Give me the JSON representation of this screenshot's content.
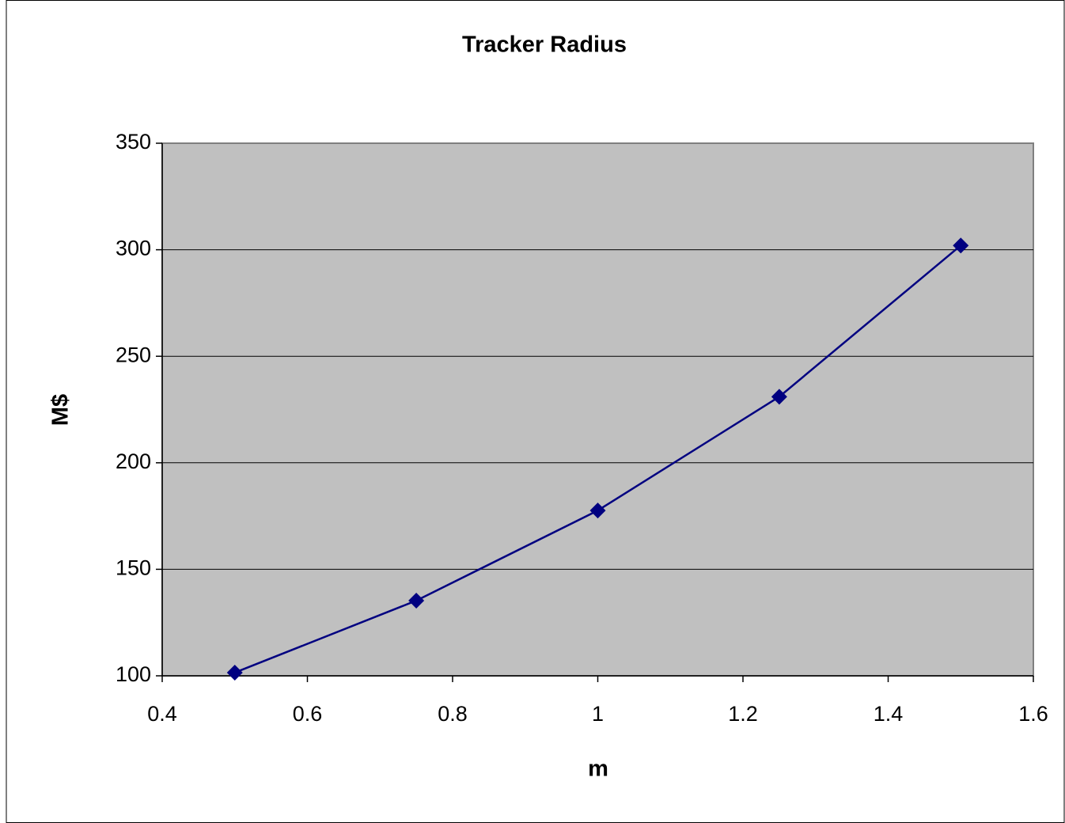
{
  "chart_data": {
    "type": "line",
    "title": "Tracker Radius",
    "x_label": "m",
    "y_label": "M$",
    "x": [
      0.5,
      0.75,
      1,
      1.25,
      1.5
    ],
    "values": [
      101.5,
      135.3,
      177.6,
      231,
      302
    ],
    "color": "#000080",
    "marker": "diamond",
    "xlim": [
      0.4,
      1.6
    ],
    "xticks": [
      0.4,
      0.6,
      0.8,
      1,
      1.2,
      1.4,
      1.6
    ],
    "ylim": [
      100,
      350
    ],
    "yticks": [
      100,
      150,
      200,
      250,
      300,
      350
    ],
    "grid": true
  }
}
